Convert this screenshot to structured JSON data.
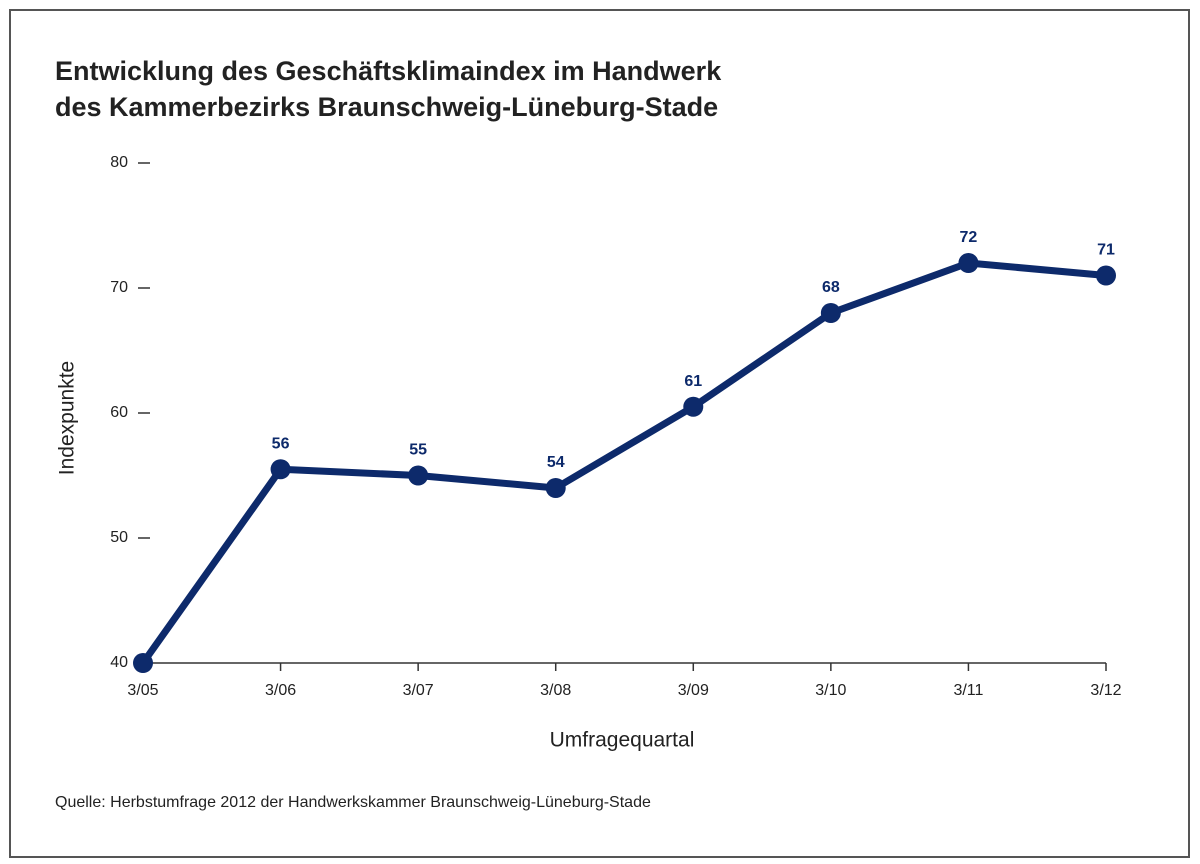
{
  "chart_data": {
    "type": "line",
    "title": [
      "Entwicklung des Geschäftsklimaindex im Handwerk",
      "des Kammerbezirks Braunschweig-Lüneburg-Stade"
    ],
    "x_label": "Umfragequartal",
    "y_label": "Indexpunkte",
    "source": "Quelle: Herbstumfrage 2012 der Handwerkskammer Braunschweig-Lüneburg-Stade",
    "categories": [
      "3/05",
      "3/06",
      "3/07",
      "3/08",
      "3/09",
      "3/10",
      "3/11",
      "3/12"
    ],
    "values": [
      40,
      55.5,
      55,
      54,
      60.5,
      68,
      72,
      71
    ],
    "value_labels": [
      null,
      "56",
      "55",
      "54",
      "61",
      "68",
      "72",
      "71"
    ],
    "color": "#0d2a6b",
    "ylim": [
      40,
      80
    ],
    "yticks": [
      40,
      50,
      60,
      70,
      80
    ]
  }
}
